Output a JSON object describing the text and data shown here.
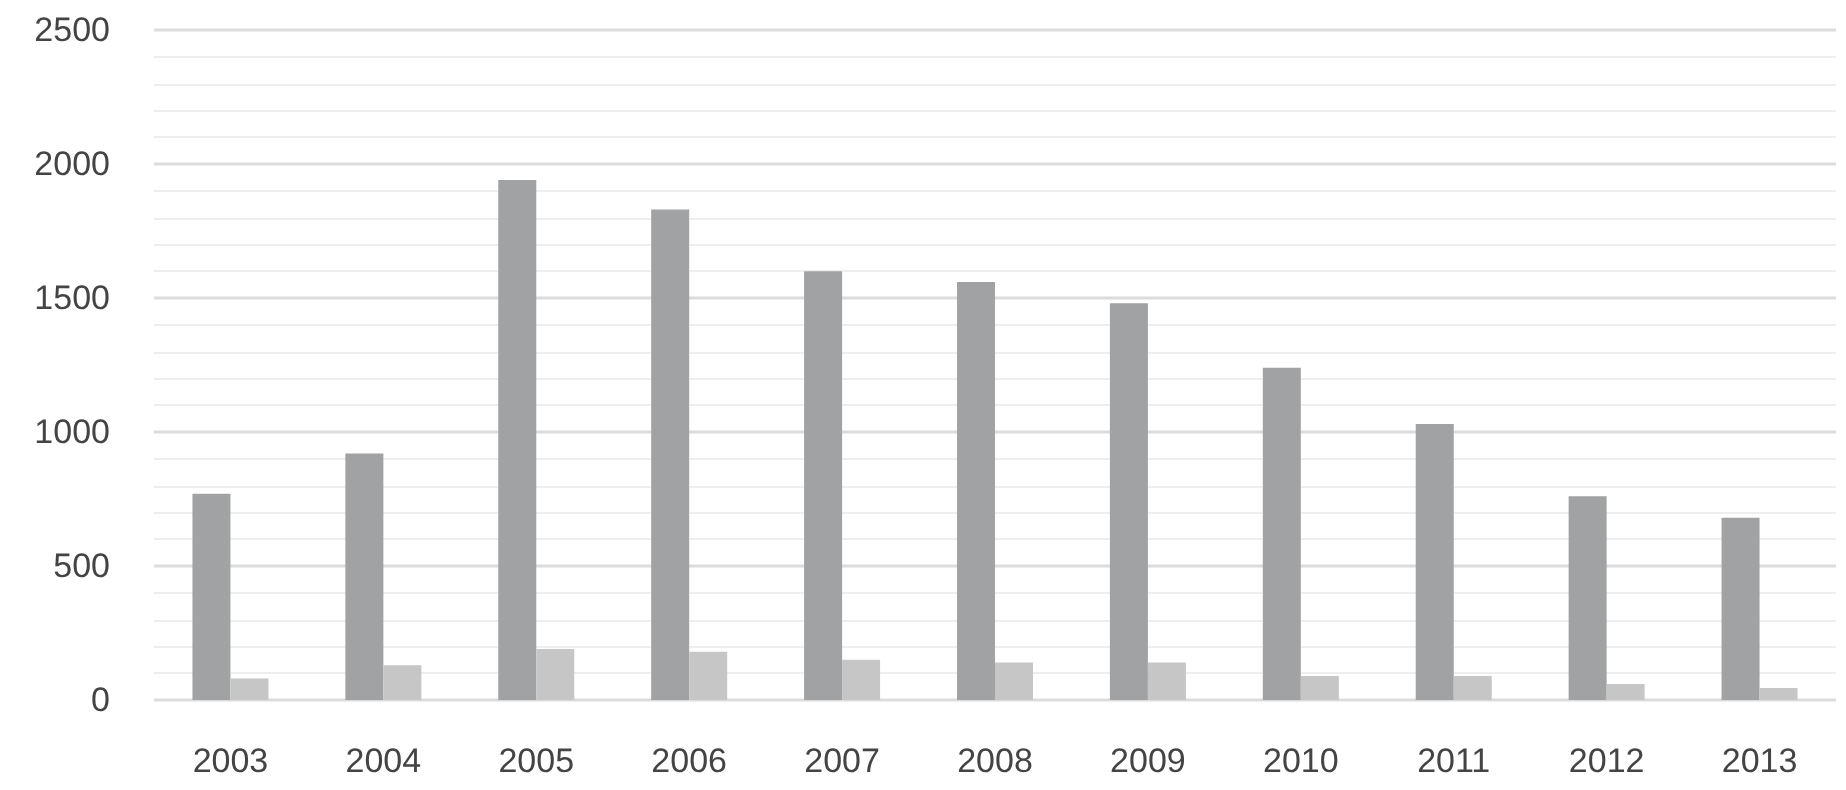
{
  "chart_data": {
    "type": "bar",
    "categories": [
      "2003",
      "2004",
      "2005",
      "2006",
      "2007",
      "2008",
      "2009",
      "2010",
      "2011",
      "2012",
      "2013"
    ],
    "series": [
      {
        "color": "#a0a2a3",
        "values": [
          770,
          920,
          1940,
          1830,
          1600,
          1560,
          1480,
          1240,
          1030,
          760,
          680
        ]
      },
      {
        "color": "#c6c6c6",
        "values": [
          80,
          130,
          190,
          180,
          150,
          140,
          140,
          90,
          90,
          60,
          45
        ]
      }
    ],
    "ylim": [
      0,
      2500
    ],
    "yticks": [
      0,
      500,
      1000,
      1500,
      2000,
      2500
    ],
    "grid": "y"
  }
}
